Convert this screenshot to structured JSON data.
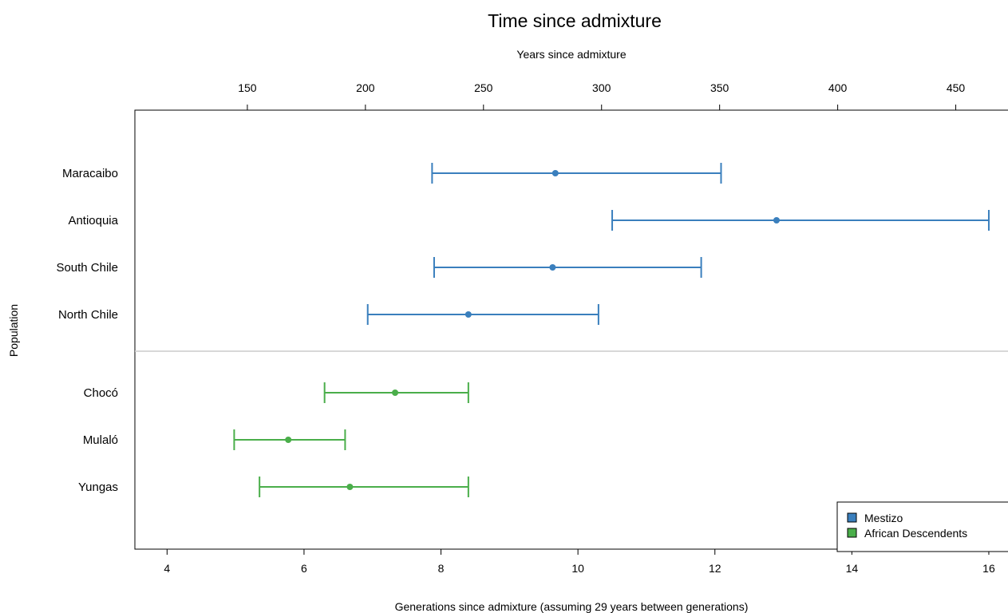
{
  "chart_data": {
    "type": "scatter",
    "title": "Time since admixture",
    "xlabel": "Generations since admixture (assuming 29 years between generations)",
    "top_xlabel": "Years since admixture",
    "ylabel": "Population",
    "xlim": [
      3.53,
      16.35
    ],
    "x_ticks": [
      4,
      6,
      8,
      10,
      12,
      14,
      16
    ],
    "top_ticks": [
      150,
      200,
      250,
      300,
      350,
      400,
      450
    ],
    "years_per_generation": 29,
    "grid": false,
    "legend_position": "bottom-right",
    "colors": {
      "Mestizo": "#3a7fbd",
      "African Descendents": "#4aae4a",
      "separator": "#cccccc"
    },
    "series": [
      {
        "name": "Mestizo",
        "points": [
          {
            "label": "Maracaibo",
            "estimate": 9.67,
            "lower": 7.87,
            "upper": 12.09
          },
          {
            "label": "Antioquia",
            "estimate": 12.9,
            "lower": 10.5,
            "upper": 16.0
          },
          {
            "label": "South Chile",
            "estimate": 9.63,
            "lower": 7.9,
            "upper": 11.8
          },
          {
            "label": "North Chile",
            "estimate": 8.4,
            "lower": 6.93,
            "upper": 10.3
          }
        ]
      },
      {
        "name": "African Descendents",
        "points": [
          {
            "label": "Chocó",
            "estimate": 7.33,
            "lower": 6.3,
            "upper": 8.4
          },
          {
            "label": "Mulaló",
            "estimate": 5.77,
            "lower": 4.98,
            "upper": 6.6
          },
          {
            "label": "Yungas",
            "estimate": 6.67,
            "lower": 5.35,
            "upper": 8.4
          }
        ]
      }
    ]
  }
}
